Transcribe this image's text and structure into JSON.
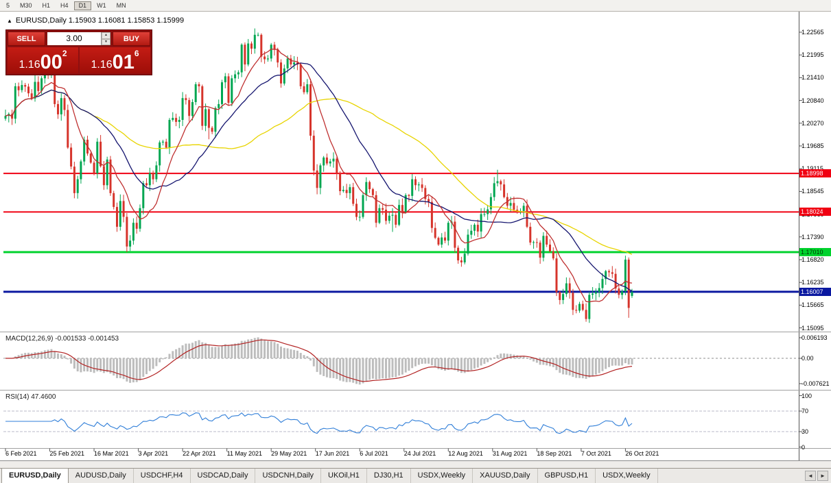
{
  "toolbar": {
    "periods": [
      "5",
      "M30",
      "H1",
      "H4",
      "D1",
      "W1",
      "MN"
    ],
    "active": "D1"
  },
  "chart": {
    "title": "EURUSD,Daily 1.15903 1.16081 1.15853 1.15999",
    "collapse_icon": "▲"
  },
  "trade_panel": {
    "sell_label": "SELL",
    "buy_label": "BUY",
    "volume": "3.00",
    "spin_up": "▲",
    "spin_down": "▼",
    "sell_price_big": "1.16",
    "sell_price_mid": "00",
    "sell_price_sup": "2",
    "buy_price_big": "1.16",
    "buy_price_mid": "01",
    "buy_price_sup": "6"
  },
  "macd_panel": {
    "label": "MACD(12,26,9) -0.001533 -0.001453",
    "ticks": [
      {
        "label": "0.006193",
        "value": 0.006193
      },
      {
        "label": "0.00",
        "value": 0
      },
      {
        "label": "-0.007621",
        "value": -0.007621
      }
    ]
  },
  "rsi_panel": {
    "label": "RSI(14) 47.4600",
    "ticks": [
      {
        "label": "100",
        "value": 100
      },
      {
        "label": "70",
        "value": 70
      },
      {
        "label": "30",
        "value": 30
      },
      {
        "label": "0",
        "value": 0
      }
    ],
    "levels": [
      70,
      30
    ]
  },
  "tabs": {
    "items": [
      {
        "label": "EURUSD,Daily",
        "active": true
      },
      {
        "label": "AUDUSD,Daily"
      },
      {
        "label": "USDCHF,H4"
      },
      {
        "label": "USDCAD,Daily"
      },
      {
        "label": "USDCNH,Daily"
      },
      {
        "label": "UKOil,H1"
      },
      {
        "label": "DJ30,H1"
      },
      {
        "label": "USDX,Weekly"
      },
      {
        "label": "XAUUSD,Daily"
      },
      {
        "label": "GBPUSD,H1"
      },
      {
        "label": "USDX,Weekly"
      }
    ],
    "nav_left": "◄",
    "nav_right": "►"
  },
  "chart_data": {
    "type": "candlestick",
    "symbol": "EURUSD",
    "timeframe": "Daily",
    "current_ohlc": {
      "open": 1.15903,
      "high": 1.16081,
      "low": 1.15853,
      "close": 1.15999
    },
    "visible_price_range": [
      1.1502,
      1.2308
    ],
    "y_tick_labels": [
      "1.22565",
      "1.21995",
      "1.21410",
      "1.20840",
      "1.20270",
      "1.19685",
      "1.19115",
      "1.18545",
      "1.17960",
      "1.17390",
      "1.16820",
      "1.16235",
      "1.15665",
      "1.15095"
    ],
    "x_tick_labels": [
      "6 Feb 2021",
      "25 Feb 2021",
      "16 Mar 2021",
      "3 Apr 2021",
      "22 Apr 2021",
      "11 May 2021",
      "29 May 2021",
      "17 Jun 2021",
      "6 Jul 2021",
      "24 Jul 2021",
      "12 Aug 2021",
      "31 Aug 2021",
      "18 Sep 2021",
      "7 Oct 2021",
      "26 Oct 2021"
    ],
    "levels": [
      {
        "value": 1.18998,
        "label": "1.18998",
        "color": "#F00012",
        "badge_fg": "#FFFFFF",
        "line_width": 2
      },
      {
        "value": 1.18024,
        "label": "1.18024",
        "color": "#F00012",
        "badge_fg": "#FFFFFF",
        "line_width": 2
      },
      {
        "value": 1.1701,
        "label": "1.17010",
        "color": "#00D22D",
        "badge_fg": "#003300",
        "line_width": 3
      },
      {
        "value": 1.16007,
        "label": "1.16007",
        "color": "#0A18A0",
        "badge_fg": "#FFFFFF",
        "line_width": 3
      }
    ],
    "moving_averages": [
      {
        "period": 55,
        "color": "#E8D400"
      },
      {
        "period": 25,
        "color": "#14146E"
      },
      {
        "period": 10,
        "color": "#BF3030"
      }
    ],
    "macd": {
      "fast": 12,
      "slow": 26,
      "signal": 9,
      "current": [
        -0.001533,
        -0.001453
      ],
      "histogram_color": "#BDBDBD",
      "signal_color": "#B22222"
    },
    "rsi": {
      "period": 14,
      "current": 47.46,
      "color": "#2F7ED8"
    },
    "candle_up_color": "#00A651",
    "candle_down_color": "#D6342B",
    "open_first": 1.2038,
    "closes": [
      1.2045,
      1.205,
      1.2038,
      1.212,
      1.211,
      1.2123,
      1.2119,
      1.2102,
      1.2089,
      1.2131,
      1.2108,
      1.214,
      1.2162,
      1.2155,
      1.2165,
      1.2075,
      1.2049,
      1.209,
      1.206,
      1.1965,
      1.1917,
      1.185,
      1.1885,
      1.193,
      1.1985,
      1.195,
      1.1927,
      1.19,
      1.198,
      1.1918,
      1.187,
      1.1935,
      1.185,
      1.1815,
      1.1765,
      1.183,
      1.179,
      1.1715,
      1.173,
      1.1775,
      1.176,
      1.1812,
      1.1875,
      1.187,
      1.19,
      1.1885,
      1.192,
      1.1978,
      1.198,
      1.1965,
      1.2035,
      1.204,
      1.203,
      1.2035,
      1.209,
      1.2085,
      1.2045,
      1.208,
      1.2125,
      1.212,
      1.202,
      1.2062,
      1.2015,
      1.2005,
      1.2065,
      1.2075,
      1.213,
      1.2145,
      1.2078,
      1.214,
      1.215,
      1.2155,
      1.2225,
      1.2175,
      1.2228,
      1.2215,
      1.225,
      1.225,
      1.2195,
      1.2188,
      1.219,
      1.2225,
      1.2213,
      1.218,
      1.2127,
      1.2165,
      1.219,
      1.2175,
      1.218,
      1.2175,
      1.212,
      1.2105,
      1.2125,
      1.1995,
      1.1907,
      1.1863,
      1.192,
      1.194,
      1.1925,
      1.193,
      1.1937,
      1.19,
      1.1855,
      1.1858,
      1.185,
      1.1865,
      1.1823,
      1.179,
      1.179,
      1.1845,
      1.1878,
      1.186,
      1.1845,
      1.1775,
      1.1812,
      1.1808,
      1.178,
      1.1793,
      1.1795,
      1.177,
      1.182,
      1.1802,
      1.1845,
      1.1843,
      1.1885,
      1.187,
      1.1872,
      1.1863,
      1.1835,
      1.1828,
      1.1762,
      1.1737,
      1.172,
      1.1738,
      1.173,
      1.1775,
      1.1778,
      1.1712,
      1.168,
      1.1675,
      1.1697,
      1.1745,
      1.1755,
      1.177,
      1.1753,
      1.1797,
      1.1797,
      1.1809,
      1.184,
      1.1875,
      1.188,
      1.1872,
      1.184,
      1.1818,
      1.1825,
      1.1808,
      1.1805,
      1.1805,
      1.1818,
      1.1765,
      1.1725,
      1.1726,
      1.1725,
      1.1687,
      1.1742,
      1.172,
      1.1703,
      1.1685,
      1.16,
      1.158,
      1.1595,
      1.1622,
      1.1598,
      1.1555,
      1.1553,
      1.157,
      1.1555,
      1.1532,
      1.1593,
      1.1596,
      1.16,
      1.161,
      1.1633,
      1.1653,
      1.165,
      1.1646,
      1.1609,
      1.1593,
      1.1602,
      1.1682,
      1.156,
      1.15999
    ],
    "extremes": {
      "14": {
        "h": 1.2185
      },
      "22": {
        "l": 1.1836
      },
      "38": {
        "l": 1.1704
      },
      "62": {
        "l": 1.1986
      },
      "76": {
        "h": 1.2266
      },
      "95": {
        "l": 1.1847
      },
      "118": {
        "l": 1.1752
      },
      "139": {
        "l": 1.1664
      },
      "150": {
        "h": 1.1909
      },
      "168": {
        "l": 1.159
      },
      "173": {
        "l": 1.1542
      },
      "177": {
        "l": 1.1525
      },
      "189": {
        "h": 1.1692
      },
      "190": {
        "l": 1.1535
      },
      "191": {
        "o": 1.15903,
        "h": 1.16081,
        "l": 1.15853
      }
    }
  }
}
